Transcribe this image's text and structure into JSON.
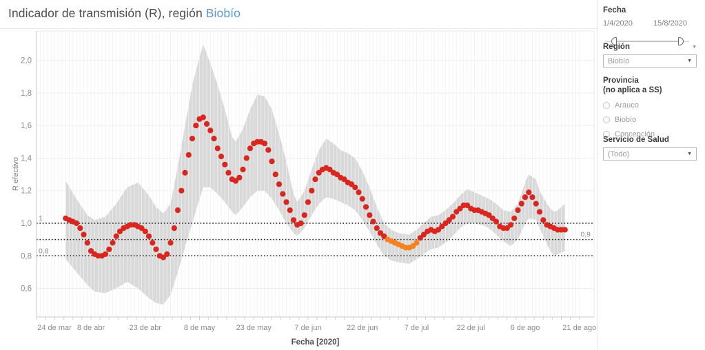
{
  "title": {
    "prefix": "Indicador de transmisión (R), región ",
    "highlight": "Biobío"
  },
  "sidebar": {
    "fecha": {
      "label": "Fecha",
      "start": "1/4/2020",
      "end": "15/8/2020"
    },
    "region": {
      "label": "Región",
      "value": "Biobío"
    },
    "provincia": {
      "label": "Provincia",
      "sublabel": "(no aplica a SS)",
      "options": [
        "Arauco",
        "Biobío",
        "Concepción"
      ]
    },
    "servicio": {
      "label": "Servicio de Salud",
      "value": "(Todo)"
    },
    "icons": {
      "dropdown_arrow": "▼",
      "card_menu_arrow": "▼"
    }
  },
  "chart_data": {
    "type": "scatter",
    "title": "Indicador de transmisión (R), región Biobío",
    "xlabel": "Fecha [2020]",
    "ylabel": "R efectivo",
    "start_date": "1/4/2020",
    "x_unit": "day",
    "ylim": [
      0.5,
      2.15
    ],
    "grid": "on",
    "y_ticks": [
      {
        "v": 2.0,
        "label": "2,0"
      },
      {
        "v": 1.8,
        "label": "1,8"
      },
      {
        "v": 1.6,
        "label": "1,6"
      },
      {
        "v": 1.4,
        "label": "1,4"
      },
      {
        "v": 1.2,
        "label": "1,2"
      },
      {
        "v": 1.0,
        "label": "1,0"
      },
      {
        "v": 0.8,
        "label": "0,8"
      },
      {
        "v": 0.6,
        "label": "0,6"
      }
    ],
    "x_ticks": [
      {
        "day": -8,
        "label": "24 de mar"
      },
      {
        "day": 7,
        "label": "8 de abr"
      },
      {
        "day": 22,
        "label": "23 de abr"
      },
      {
        "day": 37,
        "label": "8 de may"
      },
      {
        "day": 52,
        "label": "23 de may"
      },
      {
        "day": 67,
        "label": "7 de jun"
      },
      {
        "day": 82,
        "label": "22 de jun"
      },
      {
        "day": 97,
        "label": "7 de jul"
      },
      {
        "day": 112,
        "label": "22 de jul"
      },
      {
        "day": 127,
        "label": "6 de ago"
      },
      {
        "day": 142,
        "label": "21 de ago"
      }
    ],
    "values": [
      1.03,
      1.02,
      1.01,
      1.0,
      0.97,
      0.93,
      0.88,
      0.83,
      0.81,
      0.8,
      0.8,
      0.81,
      0.84,
      0.88,
      0.92,
      0.95,
      0.97,
      0.98,
      0.99,
      0.99,
      0.98,
      0.97,
      0.95,
      0.92,
      0.88,
      0.84,
      0.8,
      0.79,
      0.81,
      0.88,
      0.97,
      1.08,
      1.2,
      1.31,
      1.42,
      1.52,
      1.6,
      1.64,
      1.65,
      1.61,
      1.57,
      1.52,
      1.46,
      1.41,
      1.36,
      1.31,
      1.27,
      1.26,
      1.28,
      1.33,
      1.4,
      1.46,
      1.49,
      1.5,
      1.5,
      1.49,
      1.45,
      1.38,
      1.3,
      1.24,
      1.18,
      1.13,
      1.08,
      1.02,
      0.99,
      1.0,
      1.05,
      1.13,
      1.2,
      1.27,
      1.31,
      1.33,
      1.34,
      1.33,
      1.31,
      1.3,
      1.28,
      1.27,
      1.25,
      1.24,
      1.22,
      1.19,
      1.15,
      1.1,
      1.05,
      1.01,
      0.97,
      0.94,
      0.92,
      0.9,
      0.89,
      0.88,
      0.87,
      0.86,
      0.85,
      0.85,
      0.86,
      0.88,
      0.91,
      0.93,
      0.95,
      0.96,
      0.95,
      0.96,
      0.98,
      1.0,
      1.02,
      1.04,
      1.07,
      1.09,
      1.11,
      1.11,
      1.09,
      1.08,
      1.08,
      1.07,
      1.06,
      1.05,
      1.03,
      1.01,
      0.98,
      0.97,
      0.97,
      0.99,
      1.03,
      1.08,
      1.12,
      1.16,
      1.19,
      1.16,
      1.12,
      1.07,
      1.02,
      0.99,
      0.98,
      0.97,
      0.96,
      0.96,
      0.96
    ],
    "orange_segment": [
      89,
      97
    ],
    "band": [
      [
        0,
        1.26,
        0.78
      ],
      [
        3,
        1.15,
        0.7
      ],
      [
        6,
        1.05,
        0.62
      ],
      [
        8,
        1.02,
        0.58
      ],
      [
        11,
        1.04,
        0.57
      ],
      [
        14,
        1.12,
        0.6
      ],
      [
        17,
        1.22,
        0.64
      ],
      [
        20,
        1.25,
        0.6
      ],
      [
        23,
        1.17,
        0.54
      ],
      [
        25,
        1.1,
        0.51
      ],
      [
        27,
        1.06,
        0.5
      ],
      [
        29,
        1.12,
        0.56
      ],
      [
        31,
        1.35,
        0.7
      ],
      [
        33,
        1.6,
        0.85
      ],
      [
        35,
        1.85,
        1.0
      ],
      [
        37,
        2.02,
        1.15
      ],
      [
        38,
        2.1,
        1.22
      ],
      [
        40,
        1.98,
        1.22
      ],
      [
        42,
        1.85,
        1.18
      ],
      [
        44,
        1.7,
        1.13
      ],
      [
        46,
        1.53,
        1.07
      ],
      [
        47,
        1.5,
        1.05
      ],
      [
        49,
        1.58,
        1.1
      ],
      [
        51,
        1.7,
        1.16
      ],
      [
        53,
        1.79,
        1.2
      ],
      [
        55,
        1.78,
        1.2
      ],
      [
        57,
        1.7,
        1.15
      ],
      [
        59,
        1.55,
        1.08
      ],
      [
        61,
        1.38,
        1.0
      ],
      [
        63,
        1.18,
        0.94
      ],
      [
        64,
        1.13,
        0.92
      ],
      [
        66,
        1.2,
        0.97
      ],
      [
        68,
        1.33,
        1.05
      ],
      [
        70,
        1.45,
        1.12
      ],
      [
        72,
        1.52,
        1.16
      ],
      [
        74,
        1.49,
        1.15
      ],
      [
        76,
        1.45,
        1.13
      ],
      [
        78,
        1.43,
        1.11
      ],
      [
        80,
        1.4,
        1.08
      ],
      [
        82,
        1.32,
        1.02
      ],
      [
        84,
        1.22,
        0.95
      ],
      [
        86,
        1.1,
        0.87
      ],
      [
        88,
        1.0,
        0.8
      ],
      [
        90,
        0.96,
        0.77
      ],
      [
        92,
        0.94,
        0.76
      ],
      [
        95,
        0.93,
        0.75
      ],
      [
        97,
        0.96,
        0.78
      ],
      [
        99,
        1.0,
        0.81
      ],
      [
        101,
        1.04,
        0.84
      ],
      [
        103,
        1.05,
        0.85
      ],
      [
        105,
        1.08,
        0.88
      ],
      [
        107,
        1.12,
        0.92
      ],
      [
        109,
        1.17,
        0.97
      ],
      [
        111,
        1.21,
        1.0
      ],
      [
        113,
        1.19,
        1.0
      ],
      [
        115,
        1.17,
        0.99
      ],
      [
        117,
        1.15,
        0.97
      ],
      [
        119,
        1.12,
        0.93
      ],
      [
        121,
        1.08,
        0.89
      ],
      [
        123,
        1.07,
        0.86
      ],
      [
        125,
        1.12,
        0.9
      ],
      [
        127,
        1.25,
        1.0
      ],
      [
        128,
        1.3,
        1.03
      ],
      [
        130,
        1.27,
        1.02
      ],
      [
        131,
        1.2,
        0.97
      ],
      [
        132,
        1.16,
        0.92
      ],
      [
        133,
        1.12,
        0.87
      ],
      [
        134,
        1.09,
        0.83
      ],
      [
        135,
        1.07,
        0.8
      ],
      [
        136,
        1.08,
        0.81
      ],
      [
        138,
        1.12,
        0.83
      ]
    ],
    "ref_lines": [
      {
        "v": 1.0,
        "label": "1",
        "side": "left"
      },
      {
        "v": 0.9,
        "label": "0,9",
        "side": "right"
      },
      {
        "v": 0.8,
        "label": "0,8",
        "side": "left"
      }
    ],
    "colors": {
      "point": "#d9261f",
      "highlight": "#f5821f",
      "band": "#d9d9d9",
      "ref_line": "#1a1a1a",
      "axis_text": "#8c8c8c",
      "title_accent": "#5b9bd5"
    }
  }
}
